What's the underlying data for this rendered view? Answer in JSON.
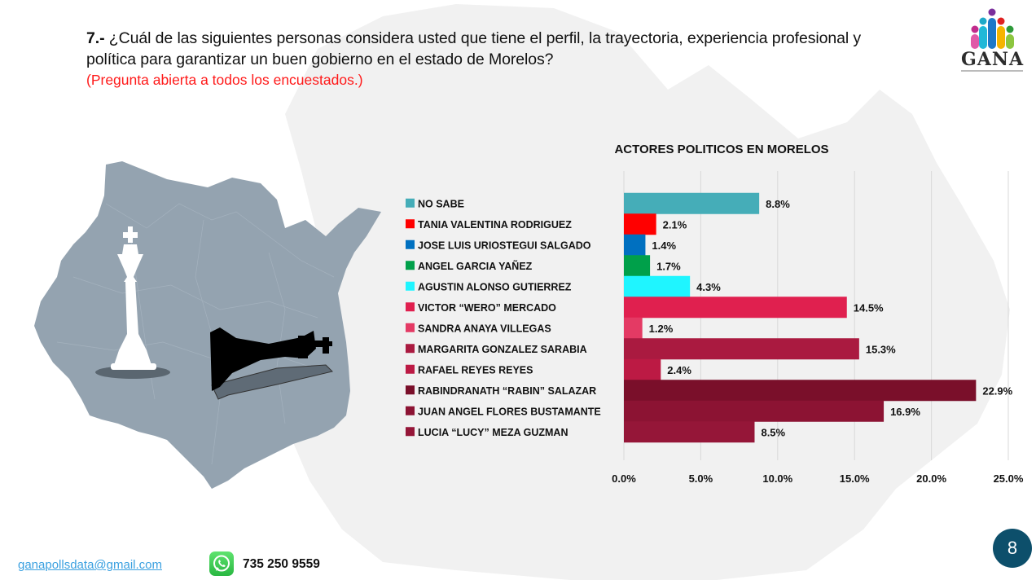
{
  "question": {
    "number": "7.-",
    "text": "¿Cuál de las siguientes personas considera usted que tiene el perfil, la trayectoria, experiencia profesional y política para garantizar un buen gobierno en el estado de Morelos?",
    "note": "(Pregunta abierta a todos los encuestados.)"
  },
  "logo": {
    "name": "GANA"
  },
  "footer": {
    "email": "ganapollsdata@gmail.com",
    "phone": "735 250 9559",
    "page_number": "8"
  },
  "chart_data": {
    "type": "bar",
    "orientation": "horizontal",
    "title": "ACTORES POLITICOS EN MORELOS",
    "xlabel": "",
    "ylabel": "",
    "xlim": [
      0,
      25
    ],
    "grid": true,
    "legend": "left",
    "x_ticks": [
      "0.0%",
      "5.0%",
      "10.0%",
      "15.0%",
      "20.0%",
      "25.0%"
    ],
    "x_tick_values": [
      0,
      5,
      10,
      15,
      20,
      25
    ],
    "categories": [
      "NO SABE",
      "TANIA VALENTINA RODRIGUEZ",
      "JOSE LUIS URIOSTEGUI SALGADO",
      "ANGEL GARCIA YAÑEZ",
      "AGUSTIN ALONSO GUTIERREZ",
      "VICTOR “WERO” MERCADO",
      "SANDRA ANAYA VILLEGAS",
      "MARGARITA GONZALEZ SARABIA",
      "RAFAEL REYES REYES",
      "RABINDRANATH “RABIN” SALAZAR",
      "JUAN ANGEL FLORES BUSTAMANTE",
      "LUCIA “LUCY” MEZA GUZMAN"
    ],
    "values": [
      8.8,
      2.1,
      1.4,
      1.7,
      4.3,
      14.5,
      1.2,
      15.3,
      2.4,
      22.9,
      16.9,
      8.5
    ],
    "labels": [
      "8.8%",
      "2.1%",
      "1.4%",
      "1.7%",
      "4.3%",
      "14.5%",
      "1.2%",
      "15.3%",
      "2.4%",
      "22.9%",
      "16.9%",
      "8.5%"
    ],
    "colors": [
      "#45adb8",
      "#ff0000",
      "#0070c0",
      "#00a04a",
      "#1ff5ff",
      "#e0204f",
      "#e43a64",
      "#aa1a40",
      "#bc1a44",
      "#7a0f2a",
      "#8c1333",
      "#951638"
    ]
  }
}
